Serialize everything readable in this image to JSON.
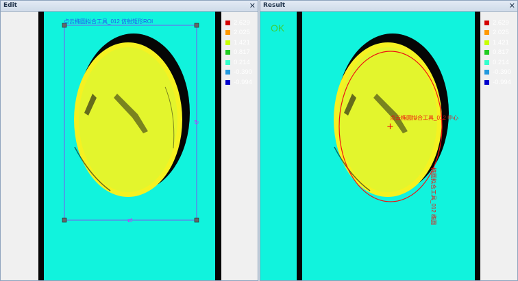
{
  "edit_panel": {
    "title": "Edit",
    "close_glyph": "✕",
    "roi_label": "点云椭圆拟合工具_012 仿射矩形ROI",
    "handles": {
      "rotate_glyph": "↻",
      "move_glyph": "⇄"
    }
  },
  "result_panel": {
    "title": "Result",
    "close_glyph": "✕",
    "status": "OK",
    "center_label": "点云椭圆拟合工具_012 中心",
    "ellipse_label": "椭圆拟合工具_012 椭圆",
    "center_marker": "+"
  },
  "legend": [
    {
      "value": "2.629",
      "color": "#d40000"
    },
    {
      "value": "2.025",
      "color": "#ff9900"
    },
    {
      "value": "1.421",
      "color": "#c8ff00"
    },
    {
      "value": "0.817",
      "color": "#22cc22"
    },
    {
      "value": "0.214",
      "color": "#33ffcc"
    },
    {
      "value": "-0.390",
      "color": "#2299dd"
    },
    {
      "value": "-0.994",
      "color": "#0000cc"
    }
  ],
  "colors": {
    "surface": "#11f3dd",
    "part": "#e3f52d",
    "rim": "#f5f222",
    "shadow": "#050505",
    "roi": "#7a55ee",
    "fit_ellipse": "#ee1111"
  }
}
